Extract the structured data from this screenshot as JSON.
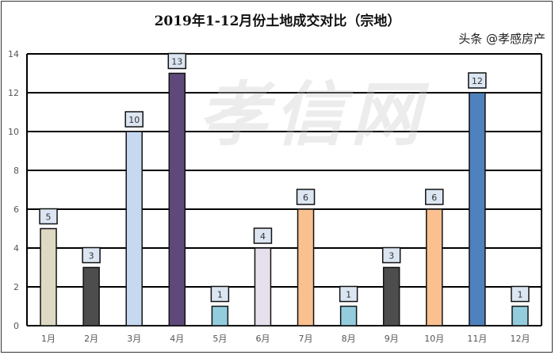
{
  "chart_data": {
    "type": "bar",
    "title": "2019年1-12月份土地成交对比（宗地）",
    "categories": [
      "1月",
      "2月",
      "3月",
      "4月",
      "5月",
      "6月",
      "7月",
      "8月",
      "9月",
      "10月",
      "11月",
      "12月"
    ],
    "values": [
      5,
      3,
      10,
      13,
      1,
      4,
      6,
      1,
      3,
      6,
      12,
      1
    ],
    "colors": [
      "#ddd9c3",
      "#4d4d4d",
      "#c6d9f1",
      "#5f497a",
      "#93cddd",
      "#e6e0ec",
      "#fac090",
      "#93cddd",
      "#4d4d4d",
      "#fac090",
      "#4f81bd",
      "#93cddd"
    ],
    "ylim": [
      0,
      14
    ],
    "yticks": [
      0,
      2,
      4,
      6,
      8,
      10,
      12,
      14
    ],
    "grid": true,
    "xlabel": "",
    "ylabel": ""
  },
  "watermark": "孝信网",
  "credit": "头条 @孝感房产"
}
